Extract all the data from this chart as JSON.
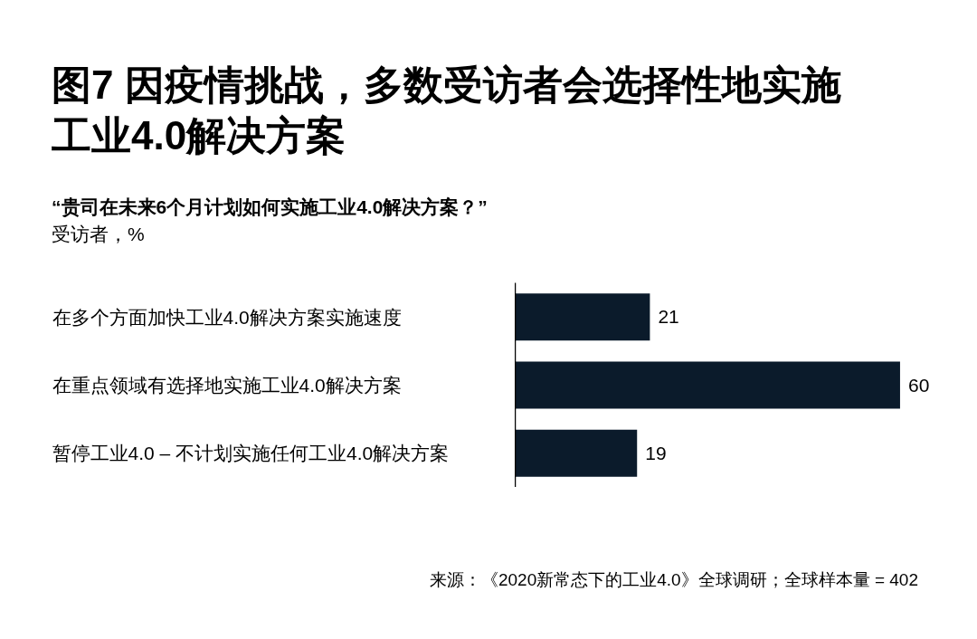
{
  "chart_data": {
    "type": "bar",
    "orientation": "horizontal",
    "title": "图7 因疫情挑战，多数受访者会选择性地实施工业4.0解决方案",
    "subtitle": "“贵司在未来6个月计划如何实施工业4.0解决方案？”",
    "xlabel": "受访者，%",
    "categories": [
      "在多个方面加快工业4.0解决方案实施速度",
      "在重点领域有选择地实施工业4.0解决方案",
      "暂停工业4.0 – 不计划实施任何工业4.0解决方案"
    ],
    "values": [
      21,
      60,
      19
    ],
    "color": "#0b1b2b",
    "data_labels": true,
    "tick_labels": "y",
    "grid": false,
    "annotations": [
      "来源：《2020新常态下的工业4.0》全球调研；全球样本量 = 402"
    ]
  }
}
